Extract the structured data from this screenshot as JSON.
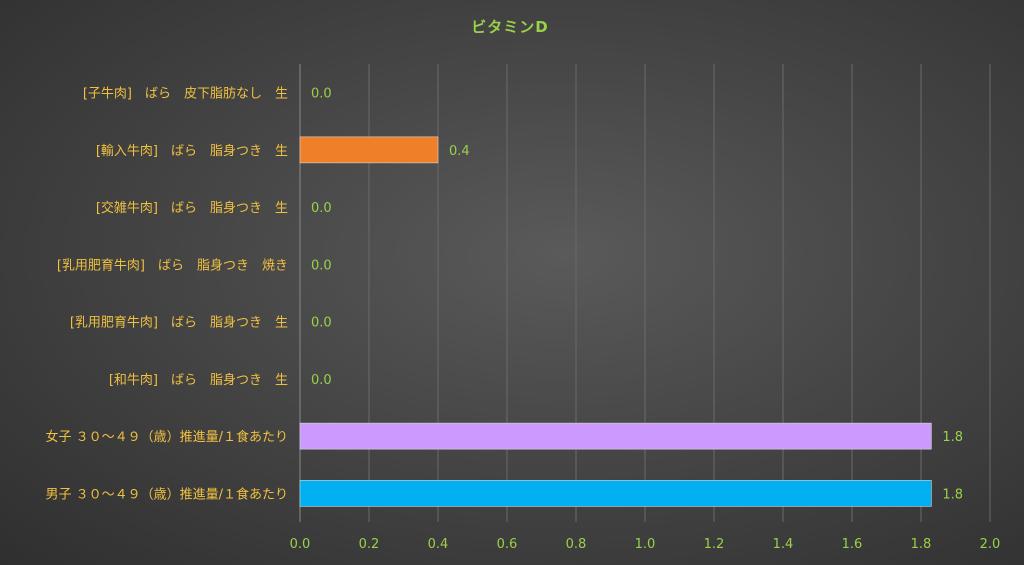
{
  "chart_data": {
    "type": "bar",
    "orientation": "horizontal",
    "title": "ビタミンD",
    "xlabel": "",
    "ylabel": "",
    "xlim": [
      0,
      2.0
    ],
    "x_ticks": [
      "0.0",
      "0.2",
      "0.4",
      "0.6",
      "0.8",
      "1.0",
      "1.2",
      "1.4",
      "1.6",
      "1.8",
      "2.0"
    ],
    "grid": true,
    "legend": "none",
    "categories": [
      "[子牛肉]　ばら　皮下脂肪なし　生",
      "[輸入牛肉]　ばら　脂身つき　生",
      "[交雑牛肉]　ばら　脂身つき　生",
      "[乳用肥育牛肉]　ばら　脂身つき　焼き",
      "[乳用肥育牛肉]　ばら　脂身つき　生",
      "[和牛肉]　ばら　脂身つき　生",
      "女子 ３０～４９（歳）推進量/１食あたり",
      "男子 ３０～４９（歳）推進量/１食あたり"
    ],
    "values": [
      0.0,
      0.4,
      0.0,
      0.0,
      0.0,
      0.0,
      1.83,
      1.83
    ],
    "data_labels": [
      "0.0",
      "0.4",
      "0.0",
      "0.0",
      "0.0",
      "0.0",
      "1.8",
      "1.8"
    ],
    "bar_colors": [
      "#f07f2a",
      "#f07f2a",
      "#f07f2a",
      "#f07f2a",
      "#f07f2a",
      "#f07f2a",
      "#cc99ff",
      "#00b0f0"
    ]
  }
}
